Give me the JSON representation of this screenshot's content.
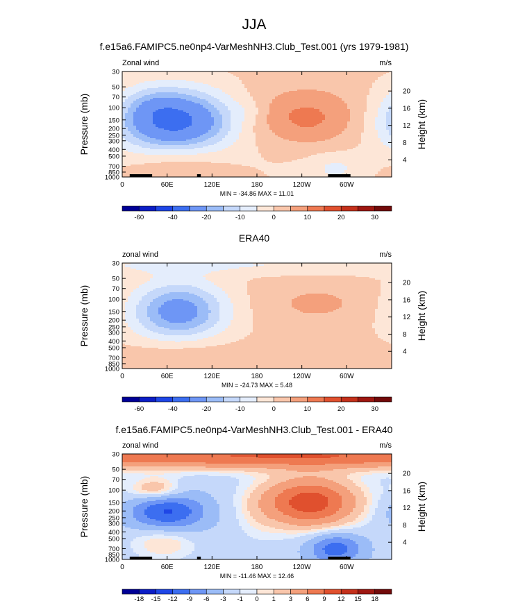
{
  "title": "JJA",
  "colors": {
    "neg": [
      "#000096",
      "#0c1ec6",
      "#1e46e6",
      "#3c6ef0",
      "#6e96f5",
      "#9bbcf7",
      "#c5d8fa",
      "#e4edfc"
    ],
    "pos": [
      "#fde6d7",
      "#f9c6ab",
      "#f4a07c",
      "#ee7951",
      "#e0502e",
      "#c4301b",
      "#9e1711",
      "#720a0a"
    ]
  },
  "chart_data": [
    {
      "type": "heatmap",
      "title": "f.e15a6.FAMIPC5.ne0np4-VarMeshNH3.Club_Test.001 (yrs 1979-1981)",
      "left_label": "Zonal wind",
      "right_label": "m/s",
      "ylabel": "Pressure (mb)",
      "ylabel_right": "Height (km)",
      "x_ticks": [
        "0",
        "60E",
        "120E",
        "180",
        "120W",
        "60W"
      ],
      "x_tick_lon": [
        0,
        60,
        120,
        180,
        240,
        300
      ],
      "xlim": [
        0,
        360
      ],
      "y_ticks": [
        "30",
        "50",
        "70",
        "100",
        "150",
        "200",
        "250",
        "300",
        "400",
        "500",
        "700",
        "850",
        "1000"
      ],
      "y_tick_p": [
        30,
        50,
        70,
        100,
        150,
        200,
        250,
        300,
        400,
        500,
        700,
        850,
        1000
      ],
      "ylim": [
        1000,
        30
      ],
      "log_scale_y": true,
      "height_ticks": [
        "4",
        "8",
        "12",
        "16",
        "20"
      ],
      "height_km": [
        4,
        8,
        12,
        16,
        20
      ],
      "stats": "MIN = -34.86  MAX =  11.01",
      "colorbar_labels": [
        "-60",
        "-40",
        "-20",
        "-10",
        "0",
        "10",
        "20",
        "30"
      ],
      "levels": [
        -70,
        -60,
        -50,
        -40,
        -30,
        -20,
        -15,
        -10,
        -5,
        0,
        5,
        10,
        15,
        20,
        25,
        30,
        35
      ],
      "background": 1,
      "features": [
        {
          "lon": 70,
          "p": 160,
          "wlon": 55,
          "wlogp": 0.32,
          "v": -35
        },
        {
          "lon": 40,
          "p": 90,
          "wlon": 25,
          "wlogp": 0.18,
          "v": -4
        },
        {
          "lon": 245,
          "p": 145,
          "wlon": 60,
          "wlogp": 0.3,
          "v": 11
        },
        {
          "lon": 75,
          "p": 620,
          "wlon": 45,
          "wlogp": 0.28,
          "v": 6
        },
        {
          "lon": 285,
          "p": 750,
          "wlon": 25,
          "wlogp": 0.15,
          "v": -6
        },
        {
          "lon": 240,
          "p": 500,
          "wlon": 70,
          "wlogp": 0.35,
          "v": -2
        },
        {
          "lon": 170,
          "p": 110,
          "wlon": 15,
          "wlogp": 0.12,
          "v": -3
        }
      ],
      "topo": [
        [
          10,
          40
        ],
        [
          28,
          38
        ],
        [
          100,
          105
        ],
        [
          275,
          305
        ]
      ]
    },
    {
      "type": "heatmap",
      "title": "ERA40",
      "left_label": "zonal wind",
      "right_label": "m/s",
      "ylabel": "Pressure (mb)",
      "ylabel_right": "Height (km)",
      "x_ticks": [
        "0",
        "60E",
        "120E",
        "180",
        "120W",
        "60W"
      ],
      "x_tick_lon": [
        0,
        60,
        120,
        180,
        240,
        300
      ],
      "xlim": [
        0,
        360
      ],
      "y_ticks": [
        "30",
        "50",
        "70",
        "100",
        "150",
        "200",
        "250",
        "300",
        "400",
        "500",
        "700",
        "850",
        "1000"
      ],
      "y_tick_p": [
        30,
        50,
        70,
        100,
        150,
        200,
        250,
        300,
        400,
        500,
        700,
        850,
        1000
      ],
      "ylim": [
        1000,
        30
      ],
      "log_scale_y": true,
      "height_ticks": [
        "4",
        "8",
        "12",
        "16",
        "20"
      ],
      "height_km": [
        4,
        8,
        12,
        16,
        20
      ],
      "stats": "MIN = -24.73  MAX =  5.48",
      "colorbar_labels": [
        "-60",
        "-40",
        "-20",
        "-10",
        "0",
        "10",
        "20",
        "30"
      ],
      "levels": [
        -70,
        -60,
        -50,
        -40,
        -30,
        -20,
        -15,
        -10,
        -5,
        0,
        5,
        10,
        15,
        20,
        25,
        30,
        35
      ],
      "background": 1,
      "features": [
        {
          "lon": 75,
          "p": 150,
          "wlon": 45,
          "wlogp": 0.3,
          "v": -25
        },
        {
          "lon": 180,
          "p": 32,
          "wlon": 400,
          "wlogp": 0.1,
          "v": -6
        },
        {
          "lon": 260,
          "p": 115,
          "wlon": 55,
          "wlogp": 0.22,
          "v": 5
        },
        {
          "lon": 80,
          "p": 700,
          "wlon": 50,
          "wlogp": 0.22,
          "v": 5
        },
        {
          "lon": 45,
          "p": 1000,
          "wlon": 25,
          "wlogp": 0.1,
          "v": -3
        }
      ],
      "topo": []
    },
    {
      "type": "heatmap",
      "title": "f.e15a6.FAMIPC5.ne0np4-VarMeshNH3.Club_Test.001 - ERA40",
      "left_label": "zonal wind",
      "right_label": "m/s",
      "ylabel": "Pressure (mb)",
      "ylabel_right": "Height (km)",
      "x_ticks": [
        "0",
        "60E",
        "120E",
        "180",
        "120W",
        "60W"
      ],
      "x_tick_lon": [
        0,
        60,
        120,
        180,
        240,
        300
      ],
      "xlim": [
        0,
        360
      ],
      "y_ticks": [
        "30",
        "50",
        "70",
        "100",
        "150",
        "200",
        "250",
        "300",
        "400",
        "500",
        "700",
        "850",
        "1000"
      ],
      "y_tick_p": [
        30,
        50,
        70,
        100,
        150,
        200,
        250,
        300,
        400,
        500,
        700,
        850,
        1000
      ],
      "ylim": [
        1000,
        30
      ],
      "log_scale_y": true,
      "height_ticks": [
        "4",
        "8",
        "12",
        "16",
        "20"
      ],
      "height_km": [
        4,
        8,
        12,
        16,
        20
      ],
      "stats": "MIN = -11.46  MAX =  12.46",
      "colorbar_labels": [
        "-18",
        "-15",
        "-12",
        "-9",
        "-6",
        "-3",
        "-1",
        "0",
        "1",
        "3",
        "6",
        "9",
        "12",
        "15",
        "18"
      ],
      "levels": [
        -21,
        -18,
        -15,
        -12,
        -9,
        -6,
        -3,
        -1,
        0,
        1,
        3,
        6,
        9,
        12,
        15,
        18,
        21
      ],
      "background": -2,
      "features": [
        {
          "lon": 180,
          "p": 32,
          "wlon": 500,
          "wlogp": 0.13,
          "v": 11
        },
        {
          "lon": 250,
          "p": 150,
          "wlon": 45,
          "wlogp": 0.25,
          "v": 13
        },
        {
          "lon": 60,
          "p": 210,
          "wlon": 35,
          "wlogp": 0.2,
          "v": -11
        },
        {
          "lon": 45,
          "p": 100,
          "wlon": 25,
          "wlogp": 0.12,
          "v": 6
        },
        {
          "lon": 55,
          "p": 500,
          "wlon": 30,
          "wlogp": 0.2,
          "v": 4
        },
        {
          "lon": 285,
          "p": 700,
          "wlon": 25,
          "wlogp": 0.15,
          "v": -9
        },
        {
          "lon": 180,
          "p": 250,
          "wlon": 20,
          "wlogp": 0.3,
          "v": 1
        }
      ],
      "topo": [
        [
          10,
          40
        ],
        [
          28,
          38
        ],
        [
          100,
          105
        ],
        [
          275,
          305
        ]
      ]
    }
  ]
}
